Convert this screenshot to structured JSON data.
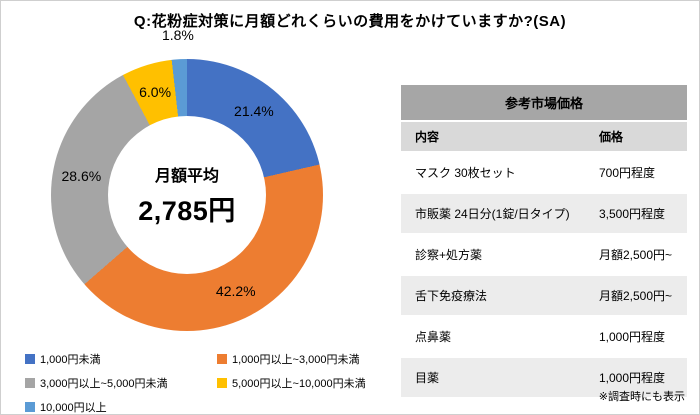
{
  "title": "Q:花粉症対策に月額どれくらいの費用をかけていますか?(SA)",
  "chart_data": {
    "type": "pie",
    "donut": true,
    "title": "Q:花粉症対策に月額どれくらいの費用をかけていますか?(SA)",
    "center_label": "月額平均",
    "center_value": "2,785円",
    "legend_position": "bottom-left",
    "slices": [
      {
        "label": "1,000円未満",
        "value": 21.4,
        "color": "#4472C4"
      },
      {
        "label": "1,000円以上~3,000円未満",
        "value": 42.2,
        "color": "#ED7D31"
      },
      {
        "label": "3,000円以上~5,000円未満",
        "value": 28.6,
        "color": "#A5A5A5"
      },
      {
        "label": "5,000円以上~10,000円未満",
        "value": 6.0,
        "color": "#FFC000"
      },
      {
        "label": "10,000円以上",
        "value": 1.8,
        "color": "#5B9BD5"
      }
    ]
  },
  "table": {
    "title": "参考市場価格",
    "columns": [
      "内容",
      "価格"
    ],
    "rows": [
      [
        "マスク 30枚セット",
        "700円程度"
      ],
      [
        "市販薬 24日分(1錠/日タイプ)",
        "3,500円程度"
      ],
      [
        "診察+処方薬",
        "月額2,500円~"
      ],
      [
        "舌下免疫療法",
        "月額2,500円~"
      ],
      [
        "点鼻薬",
        "1,000円程度"
      ],
      [
        "目薬",
        "1,000円程度"
      ]
    ]
  },
  "footnote": "※調査時にも表示"
}
